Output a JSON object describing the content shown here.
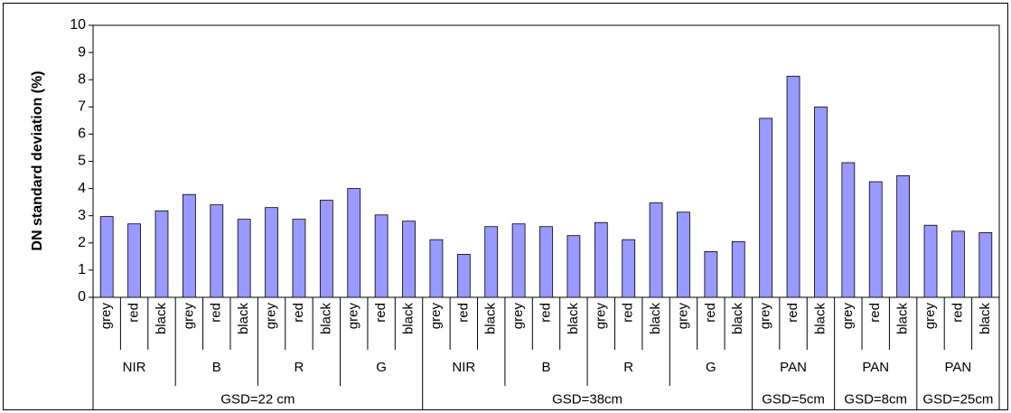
{
  "chart_data": {
    "type": "bar",
    "ylabel": "DN standard deviation (%)",
    "color": "#9999ff",
    "ylim": [
      0,
      10
    ],
    "yticks": [
      0,
      1,
      2,
      3,
      4,
      5,
      6,
      7,
      8,
      9,
      10
    ],
    "grid": false,
    "groups": [
      {
        "label": "GSD=22 cm",
        "subgroups": [
          {
            "label": "NIR",
            "categories": [
              "grey",
              "red",
              "black"
            ],
            "values": [
              2.97,
              2.7,
              3.18
            ]
          },
          {
            "label": "B",
            "categories": [
              "grey",
              "red",
              "black"
            ],
            "values": [
              3.78,
              3.4,
              2.87
            ]
          },
          {
            "label": "R",
            "categories": [
              "grey",
              "red",
              "black"
            ],
            "values": [
              3.3,
              2.87,
              3.57
            ]
          },
          {
            "label": "G",
            "categories": [
              "grey",
              "red",
              "black"
            ],
            "values": [
              4.0,
              3.03,
              2.8
            ]
          }
        ]
      },
      {
        "label": "GSD=38cm",
        "subgroups": [
          {
            "label": "NIR",
            "categories": [
              "grey",
              "red",
              "black"
            ],
            "values": [
              2.12,
              1.58,
              2.6
            ]
          },
          {
            "label": "B",
            "categories": [
              "grey",
              "red",
              "black"
            ],
            "values": [
              2.7,
              2.6,
              2.27
            ]
          },
          {
            "label": "R",
            "categories": [
              "grey",
              "red",
              "black"
            ],
            "values": [
              2.75,
              2.12,
              3.47
            ]
          },
          {
            "label": "G",
            "categories": [
              "grey",
              "red",
              "black"
            ],
            "values": [
              3.13,
              1.68,
              2.05
            ]
          }
        ]
      },
      {
        "label": "GSD=5cm",
        "subgroups": [
          {
            "label": "PAN",
            "categories": [
              "grey",
              "red",
              "black"
            ],
            "values": [
              6.58,
              8.13,
              7.0
            ]
          }
        ]
      },
      {
        "label": "GSD=8cm",
        "subgroups": [
          {
            "label": "PAN",
            "categories": [
              "grey",
              "red",
              "black"
            ],
            "values": [
              4.95,
              4.25,
              4.47
            ]
          }
        ]
      },
      {
        "label": "GSD=25cm",
        "subgroups": [
          {
            "label": "PAN",
            "categories": [
              "grey",
              "red",
              "black"
            ],
            "values": [
              2.65,
              2.43,
              2.38
            ]
          }
        ]
      }
    ]
  }
}
